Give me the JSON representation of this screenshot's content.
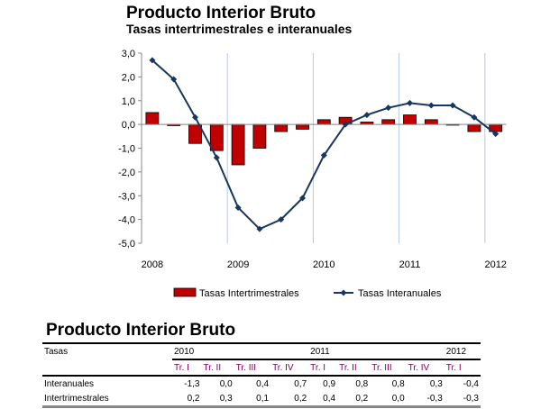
{
  "chart_data": {
    "type": "bar+line",
    "title": "Producto Interior Bruto",
    "subtitle": "Tasas intertrimestrales e interanuales",
    "ylim": [
      -5,
      3
    ],
    "yticks": [
      "3,0",
      "2,0",
      "1,0",
      "0,0",
      "-1,0",
      "-2,0",
      "-3,0",
      "-4,0",
      "-5,0"
    ],
    "year_labels": [
      "2008",
      "2009",
      "2010",
      "2011",
      "2012"
    ],
    "categories": [
      "2008 Q1",
      "2008 Q2",
      "2008 Q3",
      "2008 Q4",
      "2009 Q1",
      "2009 Q2",
      "2009 Q3",
      "2009 Q4",
      "2010 Q1",
      "2010 Q2",
      "2010 Q3",
      "2010 Q4",
      "2011 Q1",
      "2011 Q2",
      "2011 Q3",
      "2011 Q4",
      "2012 Q1"
    ],
    "series": [
      {
        "name": "Tasas Intertrimestrales",
        "type": "bar",
        "color": "#c00000",
        "values": [
          0.5,
          -0.05,
          -0.8,
          -1.1,
          -1.7,
          -1.0,
          -0.3,
          -0.2,
          0.2,
          0.3,
          0.1,
          0.2,
          0.4,
          0.2,
          0.0,
          -0.3,
          -0.3
        ]
      },
      {
        "name": "Tasas Interanuales",
        "type": "line",
        "color": "#17375e",
        "values": [
          2.7,
          1.9,
          0.3,
          -1.4,
          -3.5,
          -4.4,
          -4.0,
          -3.1,
          -1.3,
          0.0,
          0.4,
          0.7,
          0.9,
          0.8,
          0.8,
          0.3,
          -0.4
        ]
      }
    ],
    "legend": "bottom"
  },
  "table": {
    "title": "Producto Interior Bruto",
    "corner": "Tasas",
    "years": [
      "2010",
      "2011",
      "2012"
    ],
    "quarters": [
      "Tr. I",
      "Tr. II",
      "Tr. III",
      "Tr. IV",
      "Tr. I",
      "Tr. II",
      "Tr. III",
      "Tr. IV",
      "Tr. I"
    ],
    "rows": [
      {
        "label": "Interanuales",
        "values": [
          "-1,3",
          "0,0",
          "0,4",
          "0,7",
          "0,9",
          "0,8",
          "0,8",
          "0,3",
          "-0,4"
        ]
      },
      {
        "label": "Intertrimestrales",
        "values": [
          "0,2",
          "0,3",
          "0,1",
          "0,2",
          "0,4",
          "0,2",
          "0,0",
          "-0,3",
          "-0,3"
        ]
      }
    ]
  }
}
